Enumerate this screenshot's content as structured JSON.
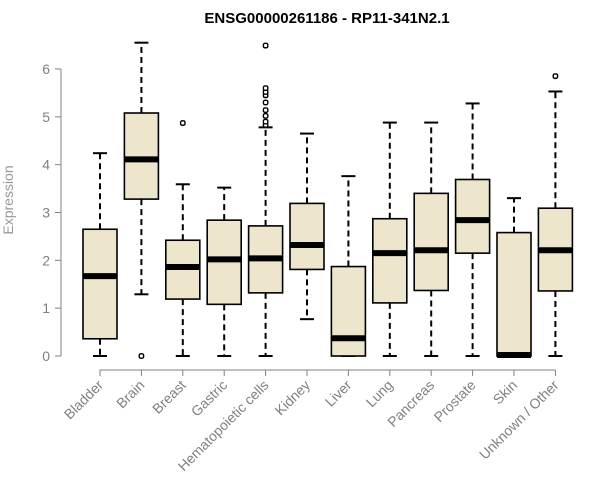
{
  "chart_data": {
    "type": "boxplot",
    "title": "ENSG00000261186 - RP11-341N2.1",
    "ylabel": "Expression",
    "xlabel": "",
    "ylim": [
      0,
      6.6
    ],
    "yticks": [
      0,
      1,
      2,
      3,
      4,
      5,
      6
    ],
    "grid": false,
    "box_color": "#ede6cd",
    "categories": [
      "Bladder",
      "Brain",
      "Breast",
      "Gastric",
      "Hematopoietic cells",
      "Kidney",
      "Liver",
      "Lung",
      "Pancreas",
      "Prostate",
      "Skin",
      "Unknown / Other"
    ],
    "boxes": [
      {
        "whisker_low": 0,
        "q1": 0.36,
        "median": 1.67,
        "q3": 2.65,
        "whisker_high": 4.24,
        "outliers": []
      },
      {
        "whisker_low": 1.29,
        "q1": 3.28,
        "median": 4.11,
        "q3": 5.08,
        "whisker_high": 6.55,
        "outliers": [
          0
        ]
      },
      {
        "whisker_low": 0,
        "q1": 1.19,
        "median": 1.86,
        "q3": 2.42,
        "whisker_high": 3.59,
        "outliers": [
          4.87
        ]
      },
      {
        "whisker_low": 0,
        "q1": 1.08,
        "median": 2.02,
        "q3": 2.84,
        "whisker_high": 3.52,
        "outliers": []
      },
      {
        "whisker_low": 0,
        "q1": 1.32,
        "median": 2.04,
        "q3": 2.72,
        "whisker_high": 4.78,
        "outliers": [
          4.83,
          4.9,
          5.02,
          5.14,
          5.3,
          5.45,
          5.52,
          5.6,
          6.49
        ]
      },
      {
        "whisker_low": 0.77,
        "q1": 1.81,
        "median": 2.32,
        "q3": 3.19,
        "whisker_high": 4.65,
        "outliers": []
      },
      {
        "whisker_low": 0,
        "q1": 0,
        "median": 0.37,
        "q3": 1.87,
        "whisker_high": 3.76,
        "outliers": []
      },
      {
        "whisker_low": 0,
        "q1": 1.11,
        "median": 2.15,
        "q3": 2.87,
        "whisker_high": 4.88,
        "outliers": []
      },
      {
        "whisker_low": 0,
        "q1": 1.37,
        "median": 2.21,
        "q3": 3.4,
        "whisker_high": 4.88,
        "outliers": []
      },
      {
        "whisker_low": 0,
        "q1": 2.15,
        "median": 2.84,
        "q3": 3.69,
        "whisker_high": 5.28,
        "outliers": []
      },
      {
        "whisker_low": 0,
        "q1": 0,
        "median": 0.02,
        "q3": 2.58,
        "whisker_high": 3.3,
        "outliers": []
      },
      {
        "whisker_low": 0,
        "q1": 1.36,
        "median": 2.21,
        "q3": 3.09,
        "whisker_high": 5.53,
        "outliers": [
          5.85
        ]
      }
    ]
  }
}
